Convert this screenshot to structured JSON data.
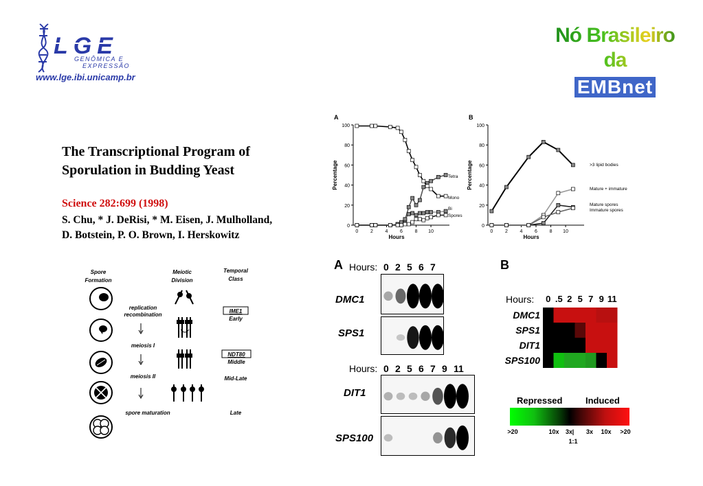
{
  "header": {
    "lge_logo": {
      "letters": "LGE",
      "subtitle_1": "GENÔMICA E",
      "subtitle_2": "EXPRESSÃO"
    },
    "lge_url": "www.lge.ibi.unicamp.br",
    "embnet_line1": "Nó Brasileiro da",
    "embnet_line2": "EMBnet"
  },
  "paper": {
    "title_line1": "The Transcriptional Program of",
    "title_line2": "Sporulation in Budding Yeast",
    "citation": "Science 282:699 (1998)",
    "authors_line1": "S. Chu, * J. DeRisi, * M. Eisen, J. Mulholland,",
    "authors_line2": "D. Botstein, P. O. Brown,  I. Herskowitz"
  },
  "diagram": {
    "col_spore": [
      "Spore",
      "Formation"
    ],
    "col_meiotic": [
      "Meiotic",
      "Division"
    ],
    "col_temporal": [
      "Temporal",
      "Class"
    ],
    "stages": [
      "replication",
      "recombination",
      "meiosis I",
      "meiosis II",
      "spore maturation"
    ],
    "classes": [
      {
        "gene": "IME1",
        "label": "Early"
      },
      {
        "gene": "NDT80",
        "label": "Middle"
      },
      {
        "label": "Mid-Late"
      },
      {
        "label": "Late"
      }
    ]
  },
  "chart_data": [
    {
      "type": "line",
      "panel": "A",
      "ylabel": "Percentage",
      "xlabel": "Hours",
      "xlim": [
        -0.5,
        12.5
      ],
      "ylim": [
        0,
        100
      ],
      "xticks": [
        0,
        2,
        4,
        6,
        8,
        10
      ],
      "yticks": [
        0,
        20,
        40,
        60,
        80,
        100
      ],
      "series": [
        {
          "name": "Tetra",
          "color": "#555555",
          "points": [
            [
              0,
              0
            ],
            [
              2,
              0
            ],
            [
              2.5,
              0
            ],
            [
              4.5,
              0
            ],
            [
              5.5,
              1
            ],
            [
              6,
              2
            ],
            [
              6.5,
              5
            ],
            [
              7,
              18
            ],
            [
              7.5,
              27
            ],
            [
              8,
              20
            ],
            [
              8.5,
              25
            ],
            [
              9,
              38
            ],
            [
              9.5,
              42
            ],
            [
              10,
              44
            ],
            [
              11,
              48
            ],
            [
              12,
              50
            ]
          ]
        },
        {
          "name": "Mono",
          "color": "#000000",
          "points": [
            [
              0,
              99
            ],
            [
              2,
              99
            ],
            [
              2.5,
              99
            ],
            [
              4.5,
              98
            ],
            [
              5.5,
              97
            ],
            [
              6,
              93
            ],
            [
              6.5,
              85
            ],
            [
              7,
              74
            ],
            [
              7.5,
              65
            ],
            [
              8,
              58
            ],
            [
              8.5,
              50
            ],
            [
              9,
              44
            ],
            [
              9.5,
              39
            ],
            [
              10,
              36
            ],
            [
              11,
              29
            ],
            [
              12,
              29
            ]
          ]
        },
        {
          "name": "Bi",
          "color": "#999999",
          "points": [
            [
              0,
              0
            ],
            [
              2,
              0
            ],
            [
              2.5,
              0
            ],
            [
              4.5,
              0
            ],
            [
              5.5,
              1
            ],
            [
              6,
              3
            ],
            [
              6.5,
              6
            ],
            [
              7,
              11
            ],
            [
              7.5,
              12
            ],
            [
              8,
              10
            ],
            [
              8.5,
              12
            ],
            [
              9,
              12
            ],
            [
              9.5,
              13
            ],
            [
              10,
              13
            ],
            [
              11,
              13
            ],
            [
              12,
              14
            ]
          ]
        },
        {
          "name": "Spores",
          "color": "#222222",
          "points": [
            [
              0,
              0
            ],
            [
              2,
              0
            ],
            [
              2.5,
              0
            ],
            [
              4.5,
              0
            ],
            [
              5.5,
              0
            ],
            [
              6,
              0
            ],
            [
              6.5,
              1
            ],
            [
              7,
              1
            ],
            [
              7.5,
              3
            ],
            [
              8,
              6
            ],
            [
              8.5,
              6
            ],
            [
              9,
              5
            ],
            [
              9.5,
              7
            ],
            [
              10,
              8
            ],
            [
              11,
              10
            ],
            [
              12,
              10
            ]
          ]
        }
      ]
    },
    {
      "type": "line",
      "panel": "B",
      "ylabel": "Percentage",
      "xlabel": "Hours",
      "xlim": [
        -0.5,
        12.5
      ],
      "ylim": [
        0,
        100
      ],
      "xticks": [
        0,
        2,
        4,
        6,
        8,
        10
      ],
      "yticks": [
        0,
        20,
        40,
        60,
        80,
        100
      ],
      "series": [
        {
          "name": ">3 lipid bodies",
          "color": "#000000",
          "points": [
            [
              0,
              14
            ],
            [
              2,
              38
            ],
            [
              5,
              68
            ],
            [
              7,
              83
            ],
            [
              9,
              75
            ],
            [
              11,
              60
            ]
          ]
        },
        {
          "name": "Mature + immature",
          "color": "#999999",
          "points": [
            [
              0,
              0
            ],
            [
              2,
              0
            ],
            [
              5,
              0
            ],
            [
              7,
              10
            ],
            [
              9,
              32
            ],
            [
              11,
              36
            ]
          ]
        },
        {
          "name": "Mature spores",
          "color": "#222222",
          "points": [
            [
              0,
              0
            ],
            [
              2,
              0
            ],
            [
              5,
              0
            ],
            [
              7,
              2
            ],
            [
              9,
              20
            ],
            [
              11,
              18
            ]
          ]
        },
        {
          "name": "Immature spores",
          "color": "#666666",
          "points": [
            [
              0,
              0
            ],
            [
              2,
              0
            ],
            [
              5,
              0
            ],
            [
              7,
              8
            ],
            [
              9,
              13
            ],
            [
              11,
              17
            ]
          ]
        }
      ]
    },
    {
      "type": "heatmap",
      "panel": "B",
      "label_hours": "Hours:",
      "time_points": [
        "0",
        ".5",
        "2",
        "5",
        "7",
        "9",
        "11"
      ],
      "genes": [
        "DMC1",
        "SPS1",
        "DIT1",
        "SPS100"
      ],
      "cells": [
        [
          "#000000",
          "#c81010",
          "#c81010",
          "#c81010",
          "#c81010",
          "#b81010",
          "#b81010"
        ],
        [
          "#000000",
          "#000000",
          "#000000",
          "#5a0808",
          "#c81010",
          "#c81010",
          "#c81010"
        ],
        [
          "#000000",
          "#000000",
          "#000000",
          "#000000",
          "#c81010",
          "#c81010",
          "#c81010"
        ],
        [
          "#000000",
          "#10c010",
          "#20a820",
          "#20a820",
          "#209a20",
          "#000000",
          "#c81010"
        ]
      ],
      "legend": {
        "repressed": "Repressed",
        "induced": "Induced",
        "ticks": [
          ">20",
          "10x",
          "3x",
          "|",
          "3x",
          "10x",
          ">20"
        ],
        "center": "1:1"
      }
    }
  ],
  "blots": {
    "panel": "A",
    "top": {
      "label": "Hours:",
      "times": [
        "0",
        "2",
        "5",
        "6",
        "7"
      ],
      "genes": [
        "DMC1",
        "SPS1"
      ]
    },
    "bottom": {
      "label": "Hours:",
      "times": [
        "0",
        "2",
        "5",
        "6",
        "7",
        "9",
        "11"
      ],
      "genes": [
        "DIT1",
        "SPS100"
      ]
    }
  }
}
